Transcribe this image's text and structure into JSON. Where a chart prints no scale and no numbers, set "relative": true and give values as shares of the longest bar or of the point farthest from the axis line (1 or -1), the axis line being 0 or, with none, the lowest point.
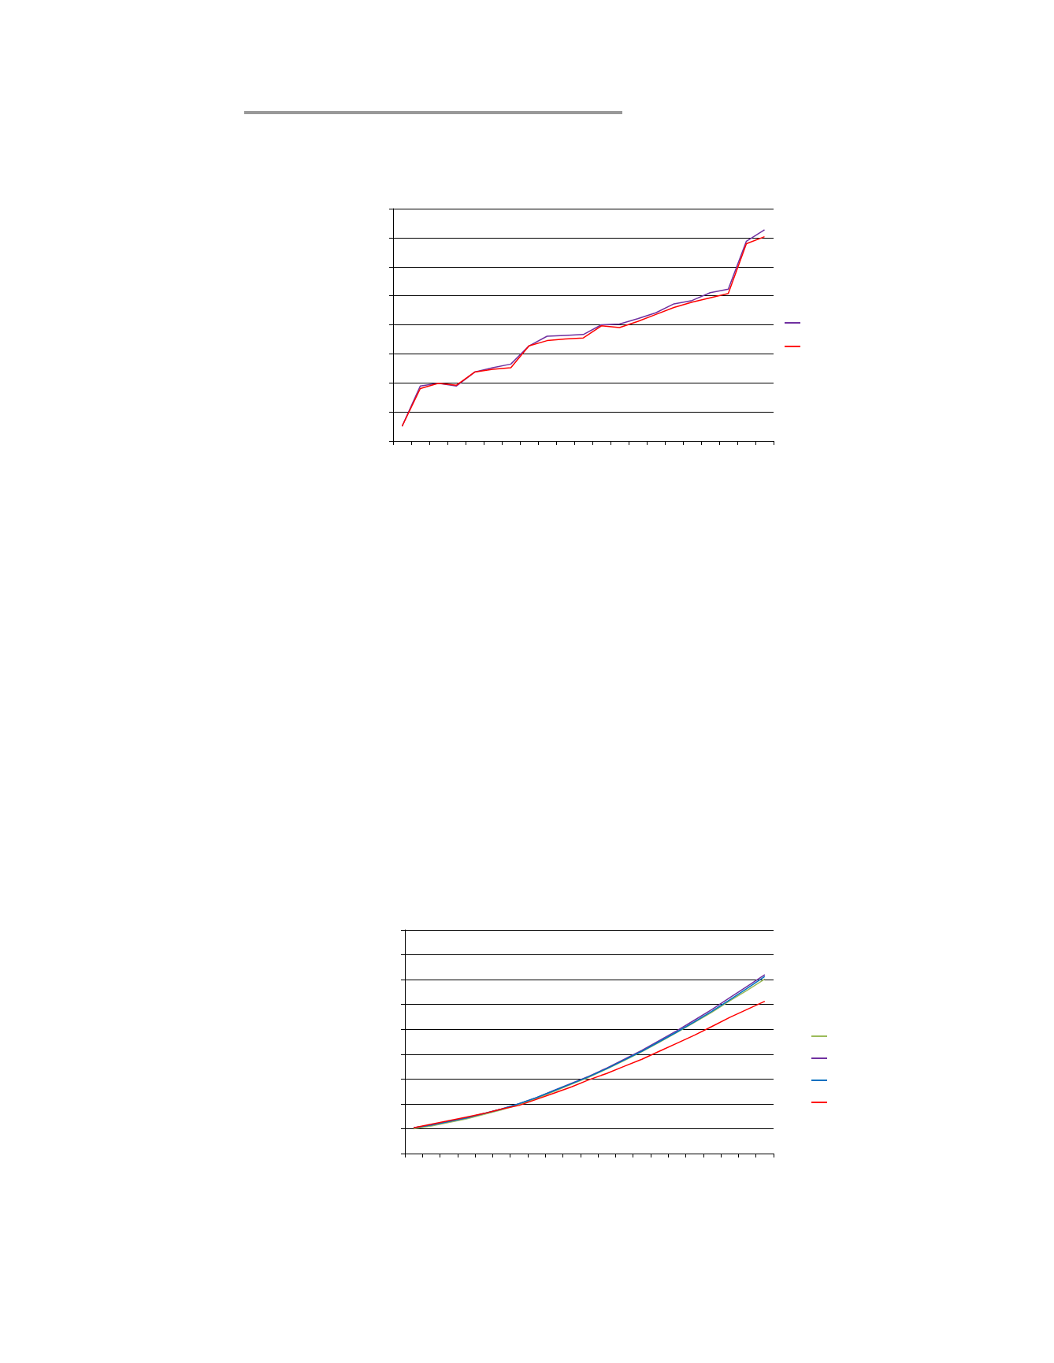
{
  "chart_data": [
    {
      "type": "line",
      "relative": true,
      "categories": [
        null,
        null,
        null,
        null,
        null,
        null,
        null,
        null,
        null,
        null,
        null,
        null,
        null,
        null,
        null,
        null,
        null,
        null,
        null,
        null,
        null
      ],
      "series": [
        {
          "color": "#7030a0",
          "values": [
            0.07,
            0.26,
            0.273,
            0.26,
            0.326,
            0.347,
            0.364,
            0.45,
            0.496,
            0.5,
            0.504,
            0.55,
            0.554,
            0.579,
            0.607,
            0.649,
            0.665,
            0.702,
            0.719,
            0.946,
            1
          ]
        },
        {
          "color": "#ff0000",
          "values": [
            0.07,
            0.248,
            0.273,
            0.264,
            0.326,
            0.339,
            0.347,
            0.45,
            0.475,
            0.483,
            0.488,
            0.545,
            0.537,
            0.566,
            0.599,
            0.632,
            0.657,
            0.678,
            0.698,
            0.934,
            0.967
          ]
        }
      ],
      "grid": "y",
      "marker": "none"
    },
    {
      "type": "line",
      "relative": true,
      "categories": [
        null,
        null,
        null,
        null,
        null,
        null,
        null,
        null,
        null,
        null,
        null,
        null,
        null,
        null,
        null,
        null,
        null,
        null,
        null,
        null,
        null
      ],
      "series": [
        {
          "color": "#9bbb59",
          "values": [
            0.139,
            0.154,
            0.174,
            0.194,
            0.219,
            0.244,
            0.274,
            0.308,
            0.348,
            0.388,
            0.428,
            0.473,
            0.52,
            0.57,
            0.622,
            0.677,
            0.734,
            0.791,
            0.853,
            0.913,
            0.975
          ]
        },
        {
          "color": "#7030a0",
          "values": [
            0.144,
            0.159,
            0.179,
            0.199,
            0.224,
            0.249,
            0.279,
            0.313,
            0.353,
            0.393,
            0.433,
            0.478,
            0.527,
            0.577,
            0.632,
            0.687,
            0.746,
            0.806,
            0.871,
            0.935,
            1
          ]
        },
        {
          "color": "#0070c0",
          "values": [
            0.144,
            0.159,
            0.179,
            0.199,
            0.224,
            0.249,
            0.279,
            0.313,
            0.352,
            0.391,
            0.431,
            0.475,
            0.523,
            0.572,
            0.626,
            0.68,
            0.737,
            0.796,
            0.859,
            0.924,
            0.99
          ]
        },
        {
          "color": "#ff0000",
          "values": [
            0.144,
            0.164,
            0.184,
            0.204,
            0.224,
            0.249,
            0.269,
            0.303,
            0.338,
            0.373,
            0.413,
            0.448,
            0.488,
            0.527,
            0.572,
            0.617,
            0.662,
            0.711,
            0.761,
            0.806,
            0.851
          ]
        }
      ],
      "grid": "y",
      "marker": "none"
    }
  ]
}
